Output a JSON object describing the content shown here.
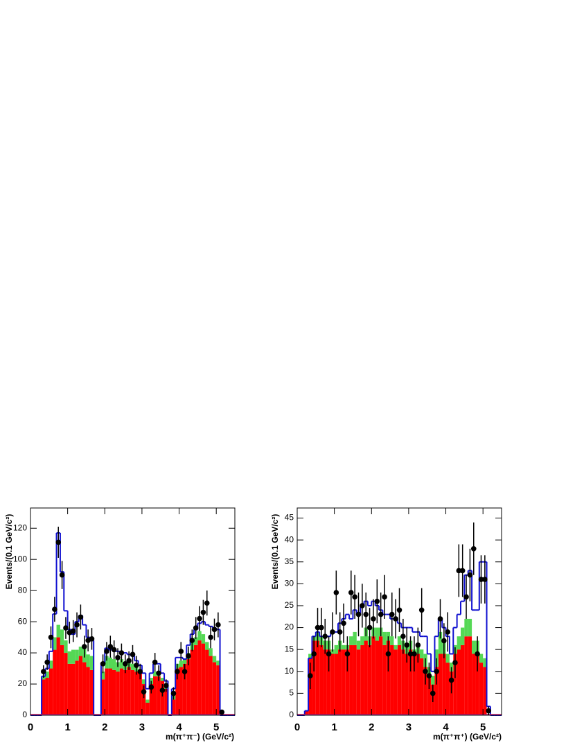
{
  "chart_data": [
    {
      "type": "histogram",
      "xlabel": "m(π⁺π⁻) (GeV/c²)",
      "ylabel": "Events/(0.1 GeV/c²)",
      "bins": [
        0,
        0.1,
        0.2,
        0.3,
        0.4,
        0.5,
        0.6,
        0.7,
        0.8,
        0.9,
        1,
        1.1,
        1.2,
        1.3,
        1.4,
        1.5,
        1.6,
        1.7,
        1.8,
        1.9,
        2,
        2.1,
        2.2,
        2.3,
        2.4,
        2.5,
        2.6,
        2.7,
        2.8,
        2.9,
        3,
        3.1,
        3.2,
        3.3,
        3.4,
        3.5,
        3.6,
        3.7,
        3.8,
        3.9,
        4,
        4.1,
        4.2,
        4.3,
        4.4,
        4.5,
        4.6,
        4.7,
        4.8,
        4.9,
        5,
        5.1,
        5.2,
        5.3,
        5.4,
        5.5
      ],
      "xlim": [
        0,
        5.5
      ],
      "ylim": [
        0,
        133
      ],
      "xticks": [
        0,
        1,
        2,
        3,
        4,
        5
      ],
      "yticks": [
        0,
        20,
        40,
        60,
        80,
        100,
        120
      ],
      "series": [
        {
          "color": "#ff0000",
          "values": [
            0,
            0,
            0,
            23,
            24,
            30,
            42,
            50,
            45,
            40,
            33,
            33,
            35,
            38,
            34,
            31,
            29,
            0,
            0,
            23,
            30,
            30,
            29,
            28,
            30,
            29,
            31,
            29,
            28,
            27,
            20,
            8,
            20,
            25,
            25,
            22,
            17,
            0,
            10,
            30,
            31,
            33,
            36,
            42,
            45,
            48,
            46,
            42,
            38,
            34,
            32,
            0,
            0,
            0,
            0
          ]
        },
        {
          "color": "#55d855",
          "values": [
            0,
            0,
            0,
            2,
            4,
            5,
            8,
            8,
            10,
            8,
            8,
            9,
            7,
            6,
            9,
            8,
            9,
            0,
            0,
            5,
            8,
            7,
            7,
            6,
            6,
            5,
            5,
            4,
            3,
            2,
            3,
            2,
            4,
            3,
            3,
            2,
            2,
            0,
            3,
            3,
            4,
            3,
            4,
            5,
            5,
            6,
            6,
            5,
            5,
            4,
            3,
            0,
            0,
            0,
            0
          ]
        }
      ],
      "outline": {
        "color": "#1010d0",
        "values": [
          0,
          0,
          0,
          25,
          30,
          41,
          65,
          117,
          92,
          67,
          55,
          52,
          60,
          64,
          58,
          50,
          48,
          0,
          0,
          33,
          43,
          42,
          42,
          41,
          40,
          40,
          39,
          38,
          35,
          32,
          27,
          17,
          27,
          33,
          33,
          27,
          22,
          0,
          17,
          37,
          37,
          36,
          45,
          52,
          55,
          59,
          60,
          58,
          57,
          56,
          55,
          0,
          0,
          0,
          0
        ]
      },
      "points": {
        "x": [
          0.35,
          0.45,
          0.55,
          0.65,
          0.75,
          0.85,
          0.95,
          1.05,
          1.15,
          1.25,
          1.35,
          1.45,
          1.55,
          1.65,
          1.95,
          2.05,
          2.15,
          2.25,
          2.35,
          2.45,
          2.55,
          2.65,
          2.75,
          2.85,
          2.95,
          3.05,
          3.25,
          3.35,
          3.45,
          3.55,
          3.65,
          3.85,
          3.95,
          4.05,
          4.15,
          4.25,
          4.35,
          4.45,
          4.55,
          4.65,
          4.75,
          4.85,
          4.95,
          5.05,
          5.15
        ],
        "y": [
          28,
          34,
          50,
          68,
          111,
          90,
          56,
          53,
          54,
          58,
          63,
          44,
          48,
          49,
          33,
          41,
          44,
          42,
          37,
          40,
          33,
          35,
          39,
          32,
          28,
          15,
          18,
          34,
          27,
          16,
          19,
          14,
          28,
          41,
          28,
          38,
          48,
          56,
          62,
          66,
          72,
          50,
          55,
          58,
          2
        ],
        "err": [
          4,
          5,
          7,
          8,
          10,
          9,
          7,
          7,
          7,
          8,
          8,
          7,
          7,
          7,
          6,
          6,
          7,
          6,
          6,
          6,
          6,
          6,
          6,
          6,
          5,
          4,
          4,
          6,
          5,
          4,
          4,
          4,
          5,
          6,
          5,
          6,
          7,
          7,
          8,
          8,
          8,
          7,
          7,
          8,
          1
        ]
      }
    },
    {
      "type": "histogram",
      "xlabel": "m(π⁺π⁺) (GeV/c²)",
      "ylabel": "Events/(0.1 GeV/c²)",
      "bins": [
        0,
        0.1,
        0.2,
        0.3,
        0.4,
        0.5,
        0.6,
        0.7,
        0.8,
        0.9,
        1,
        1.1,
        1.2,
        1.3,
        1.4,
        1.5,
        1.6,
        1.7,
        1.8,
        1.9,
        2,
        2.1,
        2.2,
        2.3,
        2.4,
        2.5,
        2.6,
        2.7,
        2.8,
        2.9,
        3,
        3.1,
        3.2,
        3.3,
        3.4,
        3.5,
        3.6,
        3.7,
        3.8,
        3.9,
        4,
        4.1,
        4.2,
        4.3,
        4.4,
        4.5,
        4.6,
        4.7,
        4.8,
        4.9,
        5,
        5.1,
        5.2,
        5.3,
        5.4,
        5.5
      ],
      "xlim": [
        0,
        5.5
      ],
      "ylim": [
        0,
        47.3
      ],
      "xticks": [
        0,
        1,
        2,
        3,
        4,
        5
      ],
      "yticks": [
        0,
        5,
        10,
        15,
        20,
        25,
        30,
        35,
        40,
        45
      ],
      "series": [
        {
          "color": "#ff0000",
          "values": [
            0,
            0,
            1,
            13,
            17,
            17,
            16,
            15,
            15,
            14,
            14,
            15,
            15,
            15,
            16,
            16,
            15,
            16,
            17,
            16,
            18,
            17,
            18,
            16,
            17,
            16,
            15,
            16,
            15,
            14,
            15,
            14,
            14,
            13,
            11,
            9,
            7,
            11,
            14,
            14,
            12,
            10,
            14,
            15,
            16,
            18,
            18,
            14,
            14,
            12,
            11,
            0,
            0,
            0,
            0
          ]
        },
        {
          "color": "#55d855",
          "values": [
            0,
            0,
            0,
            1,
            1,
            2,
            2,
            2,
            2,
            1,
            2,
            2,
            1,
            1,
            2,
            3,
            2,
            2,
            3,
            2,
            2,
            3,
            2,
            3,
            2,
            2,
            1,
            2,
            2,
            2,
            2,
            1,
            2,
            2,
            3,
            2,
            2,
            4,
            5,
            3,
            2,
            2,
            2,
            3,
            4,
            4,
            4,
            3,
            3,
            2,
            2,
            0,
            0,
            0,
            0
          ]
        }
      ],
      "outline": {
        "color": "#1010d0",
        "values": [
          0,
          0,
          1,
          13,
          18,
          19,
          18,
          18,
          18,
          19,
          19,
          21,
          22,
          23,
          22,
          24,
          23,
          25,
          26,
          25,
          26,
          25,
          24,
          23,
          23,
          22,
          22,
          21,
          20,
          20,
          20,
          19,
          19,
          18,
          18,
          14,
          10,
          18,
          22,
          20,
          18,
          14,
          20,
          23,
          26,
          32,
          33,
          24,
          24,
          35,
          35,
          2,
          0,
          0,
          0
        ]
      },
      "points": {
        "x": [
          0.35,
          0.45,
          0.55,
          0.65,
          0.75,
          0.85,
          0.95,
          1.05,
          1.15,
          1.25,
          1.35,
          1.45,
          1.55,
          1.65,
          1.75,
          1.85,
          1.95,
          2.05,
          2.15,
          2.25,
          2.35,
          2.45,
          2.55,
          2.65,
          2.75,
          2.85,
          2.95,
          3.05,
          3.15,
          3.25,
          3.35,
          3.45,
          3.55,
          3.65,
          3.75,
          3.85,
          3.95,
          4.05,
          4.15,
          4.25,
          4.35,
          4.45,
          4.55,
          4.65,
          4.75,
          4.85,
          4.95,
          5.05,
          5.15
        ],
        "y": [
          9,
          14,
          20,
          20,
          18,
          14,
          19,
          28,
          19,
          21,
          14,
          28,
          27,
          23,
          25,
          23,
          20,
          22,
          26,
          23,
          27,
          14,
          23,
          22,
          24,
          18,
          16,
          14,
          14,
          16,
          24,
          10,
          9,
          5,
          10,
          22,
          17,
          19,
          8,
          12,
          33,
          33,
          27,
          32,
          38,
          14,
          31,
          31,
          1
        ],
        "err": [
          3,
          4,
          4.5,
          4.5,
          4,
          4,
          4.5,
          5,
          4.5,
          4.5,
          4,
          5,
          5,
          5,
          5,
          5,
          4.5,
          4.5,
          5,
          5,
          5,
          4,
          5,
          4.5,
          5,
          4,
          4,
          4,
          4,
          4,
          5,
          3,
          3,
          2,
          3,
          4.5,
          4,
          4.5,
          3,
          3.5,
          6,
          6,
          5,
          6,
          6,
          4,
          5.5,
          5.5,
          1
        ]
      }
    }
  ]
}
